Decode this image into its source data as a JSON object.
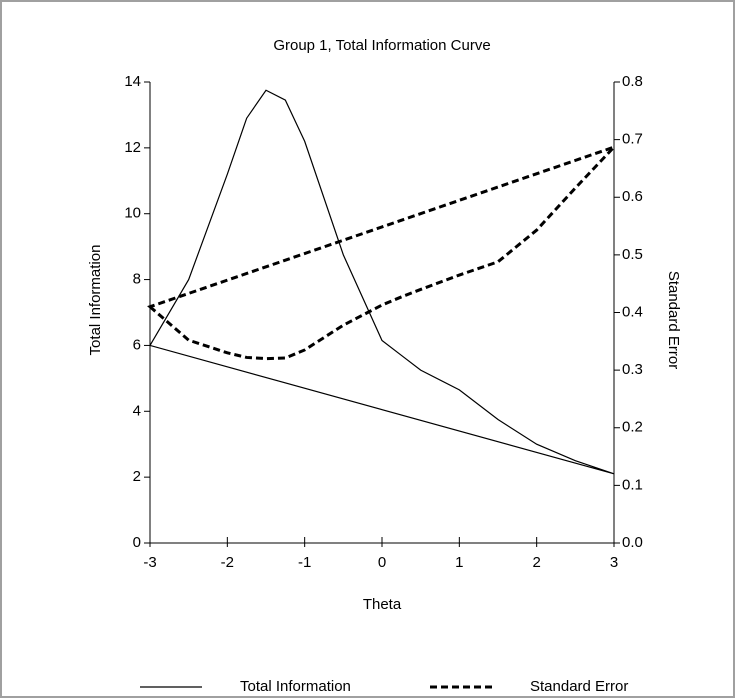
{
  "chart_data": {
    "type": "line",
    "title": "Group 1, Total Information Curve",
    "x_label": "Theta",
    "y_label": "Total Information",
    "y2_label": "Standard Error",
    "x": [
      -3,
      -2.5,
      -2,
      -1.75,
      -1.5,
      -1.25,
      -1,
      -0.5,
      0,
      0.25,
      0.5,
      1,
      1.5,
      2,
      2.5,
      3
    ],
    "series": [
      {
        "name": "Total Information",
        "color": "#000000",
        "style": "solid",
        "axis": "y",
        "values": [
          6.0,
          8.0,
          11.2,
          12.9,
          13.75,
          13.45,
          12.2,
          8.75,
          6.15,
          5.7,
          5.25,
          4.65,
          3.75,
          3.0,
          2.5,
          2.1
        ]
      },
      {
        "name": "Standard Error",
        "color": "#000000",
        "style": "dashed",
        "axis": "y2",
        "values": [
          0.41,
          0.352,
          0.33,
          0.322,
          0.32,
          0.321,
          0.335,
          0.378,
          0.413,
          0.427,
          0.44,
          0.465,
          0.488,
          0.543,
          0.616,
          0.687
        ]
      }
    ],
    "xlim": [
      -3,
      3
    ],
    "xticks": [
      -3,
      -2,
      -1,
      0,
      1,
      2,
      3
    ],
    "ylim": [
      0,
      14
    ],
    "yticks": [
      0,
      2,
      4,
      6,
      8,
      10,
      12,
      14
    ],
    "y2lim": [
      0,
      0.8
    ],
    "y2ticks": [
      {
        "value": 0,
        "label": "0.0"
      },
      0.1,
      0.2,
      0.3,
      0.4,
      0.5,
      0.6,
      0.7,
      0.8
    ],
    "closed_curves": true,
    "legend": "bottom"
  }
}
